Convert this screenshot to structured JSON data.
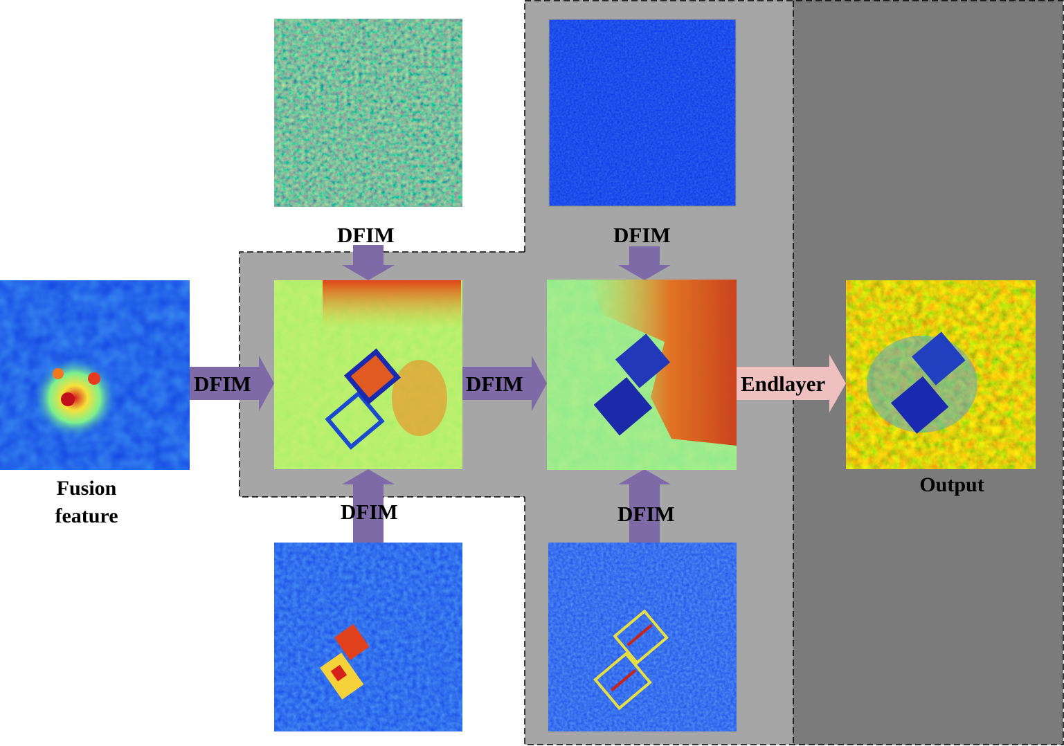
{
  "labels": {
    "fusion_caption_line1": "Fusion",
    "fusion_caption_line2": "feature",
    "output_caption": "Output",
    "dfim": "DFIM",
    "endlayer": "Endlayer"
  },
  "colors": {
    "region_light": "#a6a6a6",
    "region_dark": "#7b7b7b",
    "dfim_arrow": "#7e6aa6",
    "endlayer_arrow": "#eec0bf",
    "border": "#000000"
  },
  "heatmaps": [
    "fusion-feature-heatmap",
    "top-left-input-heatmap",
    "bottom-left-input-heatmap",
    "stage1-output-heatmap",
    "top-right-input-heatmap",
    "bottom-right-input-heatmap",
    "stage2-output-heatmap",
    "final-output-heatmap"
  ]
}
